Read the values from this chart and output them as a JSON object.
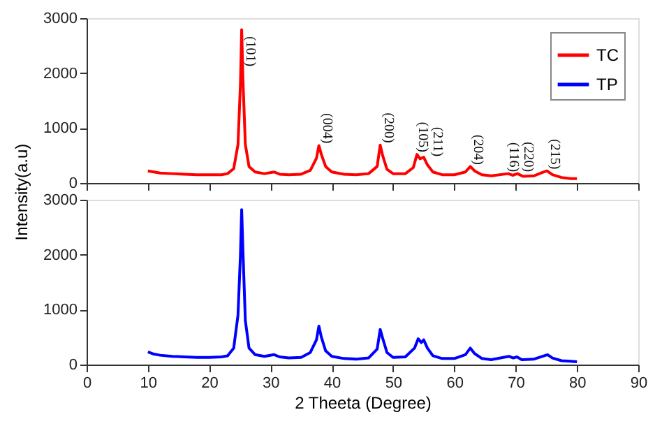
{
  "chart_data": [
    {
      "type": "line",
      "xlim": [
        0,
        90
      ],
      "xticks": [
        0,
        10,
        20,
        30,
        40,
        50,
        60,
        70,
        80,
        90
      ],
      "ylim": [
        0,
        3000
      ],
      "yticks": [
        0,
        1000,
        2000,
        3000
      ],
      "ylabel": "Intensity(a.u)",
      "grid": false,
      "legend": "top right",
      "tick_labels": "y",
      "line_style": "solid",
      "marker": "none",
      "series": [
        {
          "name": "TC",
          "color": "#ff0000",
          "x": [
            10,
            11,
            12,
            14,
            16,
            18,
            20,
            22,
            23,
            24,
            24.7,
            25.1,
            25.3,
            25.5,
            25.9,
            26.5,
            27.5,
            29,
            30.6,
            31.5,
            33,
            35,
            36.5,
            37.5,
            37.9,
            38.3,
            39,
            40,
            42,
            44,
            46,
            47.4,
            47.9,
            48.3,
            49,
            50,
            52,
            53.3,
            53.9,
            54.4,
            55,
            55.6,
            56.5,
            58,
            60,
            61.8,
            62.6,
            63.3,
            64.5,
            66,
            68.8,
            69.5,
            70.3,
            71.2,
            73,
            74.3,
            75.1,
            76,
            77.5,
            79,
            80
          ],
          "values": [
            220,
            200,
            180,
            170,
            160,
            150,
            150,
            150,
            170,
            260,
            700,
            1800,
            2790,
            1900,
            700,
            300,
            200,
            170,
            200,
            160,
            150,
            160,
            230,
            450,
            680,
            520,
            300,
            200,
            160,
            150,
            170,
            300,
            690,
            500,
            250,
            170,
            170,
            280,
            520,
            440,
            470,
            330,
            200,
            150,
            150,
            200,
            300,
            220,
            150,
            130,
            170,
            140,
            170,
            120,
            130,
            190,
            220,
            150,
            100,
            80,
            80
          ]
        }
      ],
      "annotations": [
        {
          "text": "(101)",
          "x": 25.45,
          "y": 2120
        },
        {
          "text": "(004)",
          "x": 37.9,
          "y": 720
        },
        {
          "text": "(200)",
          "x": 48.0,
          "y": 730
        },
        {
          "text": "(105)",
          "x": 53.6,
          "y": 560
        },
        {
          "text": "(211)",
          "x": 55.9,
          "y": 480
        },
        {
          "text": "(204)",
          "x": 62.6,
          "y": 330
        },
        {
          "text": "(116)",
          "x": 68.4,
          "y": 200
        },
        {
          "text": "(220)",
          "x": 70.7,
          "y": 200
        },
        {
          "text": "(215)",
          "x": 75.1,
          "y": 250
        }
      ]
    },
    {
      "type": "line",
      "xlim": [
        0,
        90
      ],
      "xticks": [
        0,
        10,
        20,
        30,
        40,
        50,
        60,
        70,
        80,
        90
      ],
      "ylim": [
        0,
        3000
      ],
      "yticks": [
        0,
        1000,
        2000,
        3000
      ],
      "xlabel": "2 Theeta (Degree)",
      "grid": false,
      "line_style": "solid",
      "marker": "none",
      "series": [
        {
          "name": "TP",
          "color": "#0000ff",
          "x": [
            10,
            11,
            12,
            14,
            16,
            18,
            20,
            22,
            23,
            24,
            24.7,
            25.1,
            25.3,
            25.5,
            25.9,
            26.5,
            27.5,
            29,
            30.6,
            31.5,
            33,
            35,
            36.5,
            37.5,
            37.9,
            38.3,
            39,
            40,
            42,
            44,
            46,
            47.4,
            47.9,
            48.3,
            49,
            50,
            52,
            53.5,
            54.1,
            54.6,
            55,
            55.6,
            56.5,
            58,
            60,
            61.8,
            62.6,
            63.3,
            64.5,
            66,
            68.9,
            69.6,
            70.2,
            71,
            73,
            74.4,
            75.2,
            76,
            77.5,
            79,
            80
          ],
          "values": [
            230,
            190,
            170,
            150,
            140,
            130,
            130,
            140,
            160,
            300,
            900,
            2000,
            2820,
            2100,
            800,
            300,
            180,
            150,
            180,
            140,
            120,
            130,
            220,
            450,
            700,
            500,
            250,
            150,
            110,
            100,
            120,
            280,
            640,
            480,
            220,
            130,
            140,
            300,
            470,
            400,
            450,
            300,
            160,
            110,
            110,
            180,
            300,
            200,
            110,
            90,
            150,
            120,
            140,
            90,
            100,
            150,
            180,
            120,
            70,
            60,
            50
          ]
        }
      ]
    }
  ]
}
